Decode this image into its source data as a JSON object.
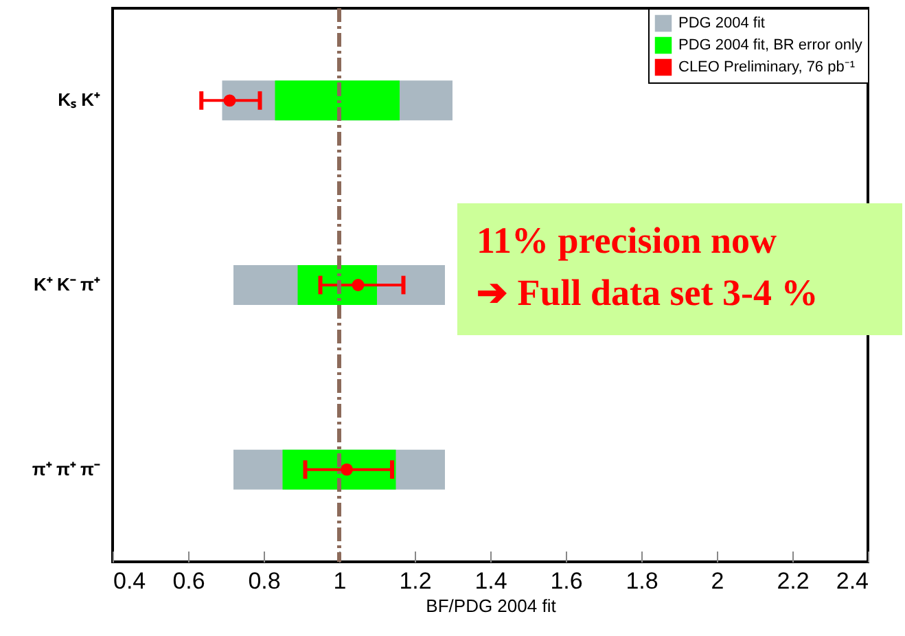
{
  "chart_data": {
    "type": "bar",
    "orientation": "horizontal",
    "categories": [
      "Kₛ K⁺",
      "K⁺ K⁻ π⁺",
      "π⁺ π⁺ π⁻"
    ],
    "xlabel": "BF/PDG 2004 fit",
    "xlim": [
      0.4,
      2.4
    ],
    "xticks": [
      0.4,
      0.6,
      0.8,
      1,
      1.2,
      1.4,
      1.6,
      1.8,
      2,
      2.2,
      2.4
    ],
    "series": [
      {
        "name": "PDG 2004 fit",
        "color": "#aab8c2",
        "base": [
          0.69,
          0.72,
          0.72
        ],
        "values": [
          0.61,
          0.56,
          0.56
        ]
      },
      {
        "name": "PDG 2004 fit, BR error only",
        "color": "#00ff00",
        "base": [
          0.83,
          0.89,
          0.85
        ],
        "values": [
          0.33,
          0.21,
          0.3
        ]
      },
      {
        "name": "CLEO Preliminary, 76 pb⁻¹",
        "type": "scatter",
        "color": "#ff0000",
        "marker": "circle",
        "values": [
          0.71,
          1.05,
          1.02
        ],
        "errors": [
          [
            0.635,
            0.79
          ],
          [
            0.95,
            1.17
          ],
          [
            0.91,
            1.14
          ]
        ]
      }
    ],
    "ref_lines": [
      {
        "axis": "x",
        "value": 1,
        "color": "#8c6a5a",
        "line_style": "dashed"
      }
    ],
    "annotations": [
      "11% precision now",
      "➔ Full data set 3-4 %"
    ],
    "legend": "top right",
    "grid": false
  }
}
